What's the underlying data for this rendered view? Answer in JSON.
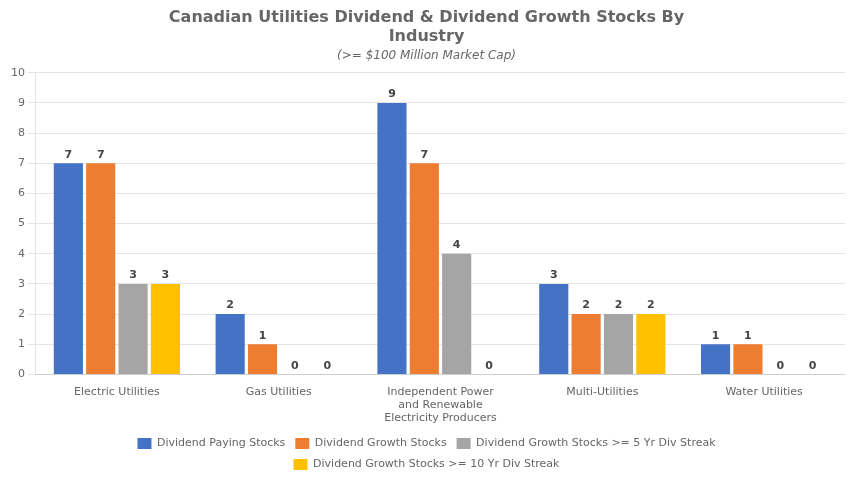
{
  "chart_data": {
    "type": "bar",
    "title": "Canadian Utilities Dividend & Dividend Growth Stocks By\nIndustry",
    "subtitle": "(>= $100 Million Market Cap)",
    "categories": [
      "Electric Utilities",
      "Gas Utilities",
      "Independent Power\nand Renewable\nElectricity Producers",
      "Multi-Utilities",
      "Water Utilities"
    ],
    "series": [
      {
        "name": "Dividend Paying Stocks",
        "color": "#4472C4",
        "values": [
          7,
          2,
          9,
          3,
          1
        ]
      },
      {
        "name": "Dividend Growth Stocks",
        "color": "#ED7D31",
        "values": [
          7,
          1,
          7,
          2,
          1
        ]
      },
      {
        "name": "Dividend Growth Stocks >= 5 Yr Div Streak",
        "color": "#A5A5A5",
        "values": [
          3,
          0,
          4,
          2,
          0
        ]
      },
      {
        "name": "Dividend Growth Stocks >= 10 Yr Div Streak",
        "color": "#FFC000",
        "values": [
          3,
          0,
          0,
          2,
          0
        ]
      }
    ],
    "ylim": [
      0,
      10
    ],
    "yticks": [
      0,
      1,
      2,
      3,
      4,
      5,
      6,
      7,
      8,
      9,
      10
    ],
    "grid": true,
    "data_labels": true,
    "legend": "bottom"
  }
}
